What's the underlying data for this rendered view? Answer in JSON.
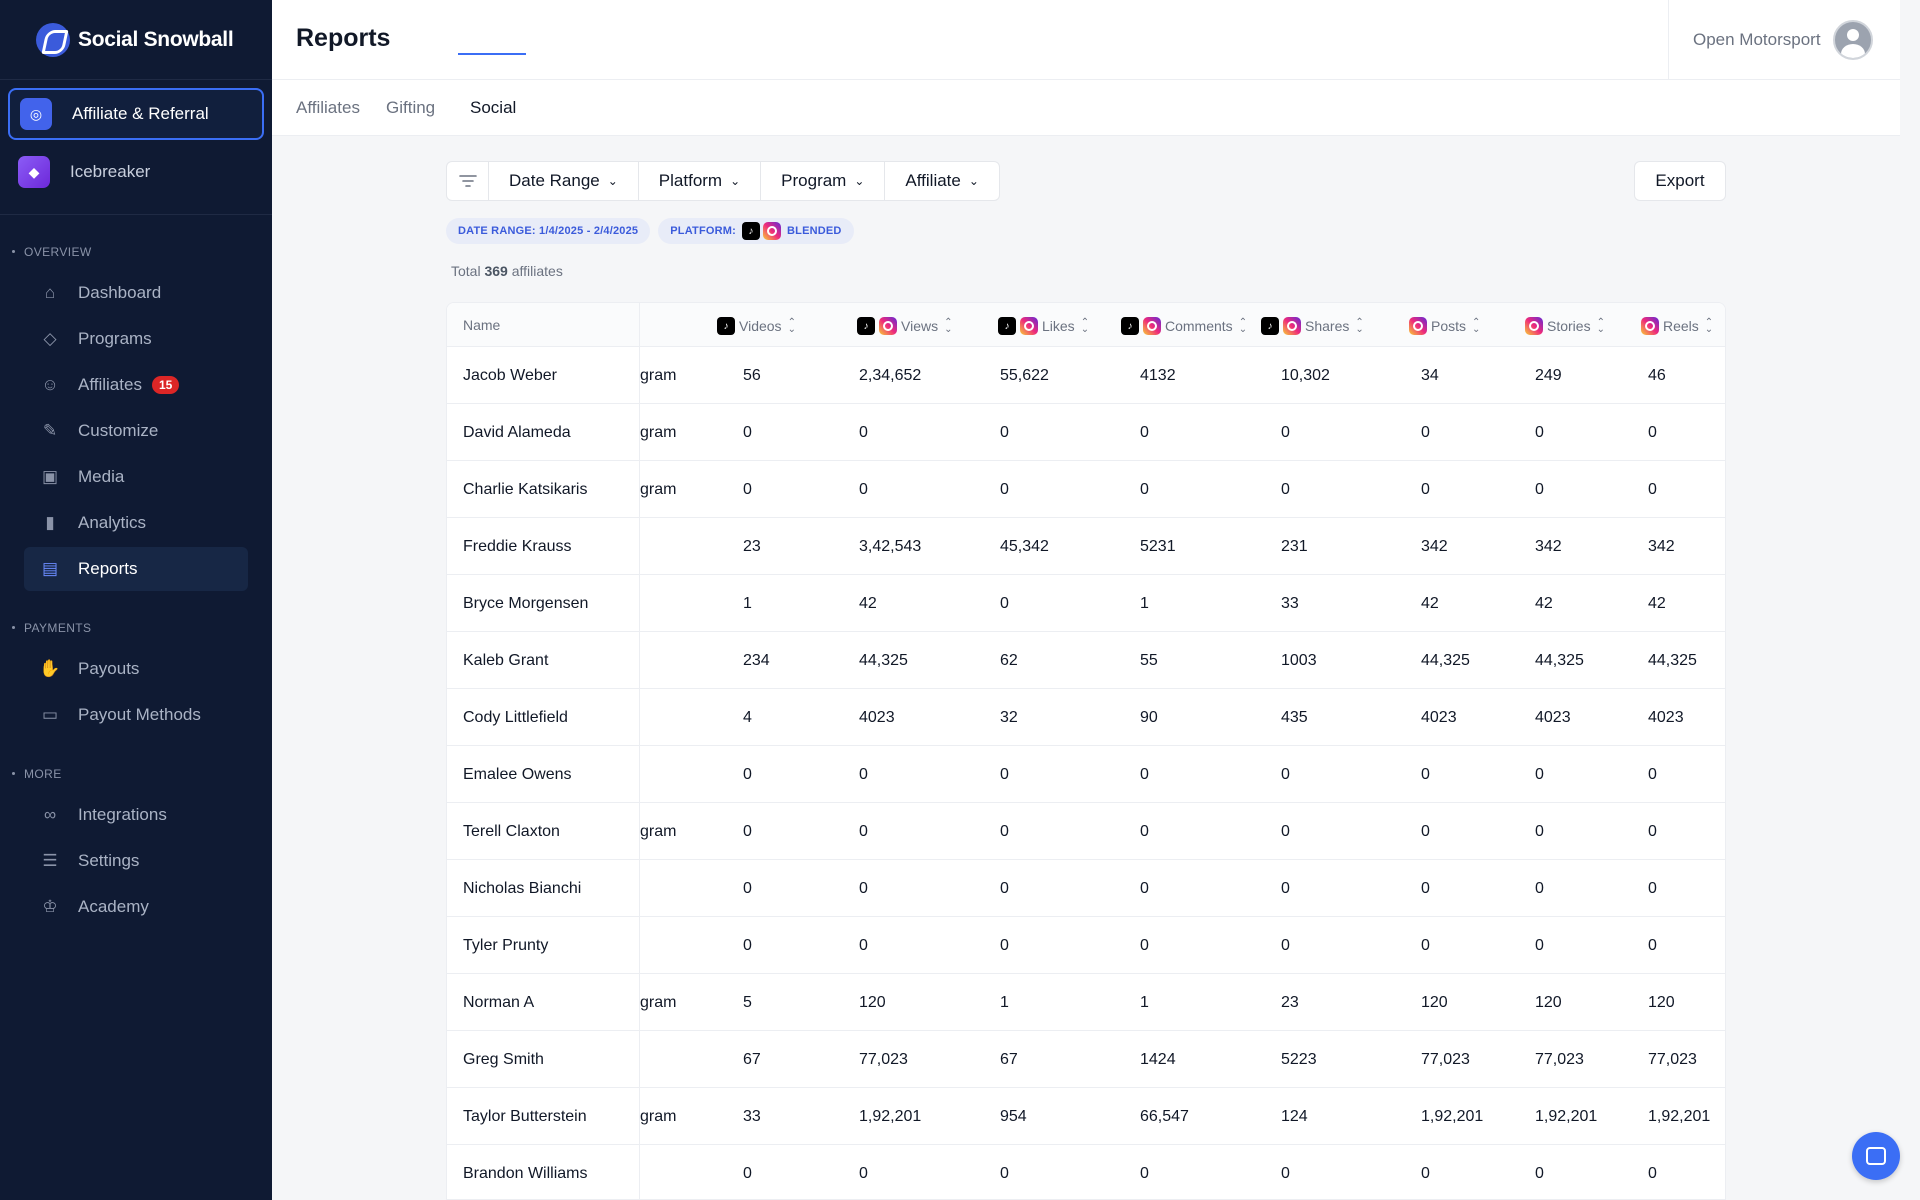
{
  "brand": {
    "name": "Social Snowball"
  },
  "apps": [
    {
      "label": "Affiliate & Referral",
      "active": true
    },
    {
      "label": "Icebreaker",
      "active": false
    }
  ],
  "nav": {
    "overview_heading": "OVERVIEW",
    "overview": [
      {
        "label": "Dashboard",
        "icon": "home-icon"
      },
      {
        "label": "Programs",
        "icon": "tag-icon"
      },
      {
        "label": "Affiliates",
        "icon": "smile-icon",
        "badge": "15"
      },
      {
        "label": "Customize",
        "icon": "pen-icon"
      },
      {
        "label": "Media",
        "icon": "image-icon"
      },
      {
        "label": "Analytics",
        "icon": "bar-chart-icon"
      },
      {
        "label": "Reports",
        "icon": "document-icon",
        "active": true
      }
    ],
    "payments_heading": "PAYMENTS",
    "payments": [
      {
        "label": "Payouts",
        "icon": "hand-coin-icon"
      },
      {
        "label": "Payout Methods",
        "icon": "card-icon"
      }
    ],
    "more_heading": "MORE",
    "more": [
      {
        "label": "Integrations",
        "icon": "link-icon"
      },
      {
        "label": "Settings",
        "icon": "settings-icon"
      },
      {
        "label": "Academy",
        "icon": "graduation-cap-icon"
      }
    ]
  },
  "header": {
    "title": "Reports",
    "account_name": "Open Motorsport"
  },
  "tabs": [
    "Affiliates",
    "Gifting",
    "Social"
  ],
  "filters": {
    "date_range": "Date Range",
    "platform": "Platform",
    "program": "Program",
    "affiliate": "Affiliate",
    "export": "Export"
  },
  "chips": {
    "date_range": "DATE RANGE: 1/4/2025 - 2/4/2025",
    "platform_label": "PLATFORM:",
    "platform_value": "BLENDED"
  },
  "total": {
    "prefix": "Total",
    "count": "369",
    "suffix": "affiliates"
  },
  "table": {
    "columns": [
      "Name",
      "Videos",
      "Views",
      "Likes",
      "Comments",
      "Shares",
      "Posts",
      "Stories",
      "Reels"
    ],
    "rows": [
      {
        "name": "Jacob Weber",
        "program": "gram",
        "values": [
          "56",
          "2,34,652",
          "55,622",
          "4132",
          "10,302",
          "34",
          "249",
          "46"
        ]
      },
      {
        "name": "David Alameda",
        "program": "gram",
        "values": [
          "0",
          "0",
          "0",
          "0",
          "0",
          "0",
          "0",
          "0"
        ]
      },
      {
        "name": "Charlie Katsikaris",
        "program": "gram",
        "values": [
          "0",
          "0",
          "0",
          "0",
          "0",
          "0",
          "0",
          "0"
        ]
      },
      {
        "name": "Freddie Krauss",
        "program": "",
        "values": [
          "23",
          "3,42,543",
          "45,342",
          "5231",
          "231",
          "342",
          "342",
          "342"
        ]
      },
      {
        "name": "Bryce Morgensen",
        "program": "",
        "values": [
          "1",
          "42",
          "0",
          "1",
          "33",
          "42",
          "42",
          "42"
        ]
      },
      {
        "name": "Kaleb Grant",
        "program": "",
        "values": [
          "234",
          "44,325",
          "62",
          "55",
          "1003",
          "44,325",
          "44,325",
          "44,325"
        ]
      },
      {
        "name": "Cody Littlefield",
        "program": "",
        "values": [
          "4",
          "4023",
          "32",
          "90",
          "435",
          "4023",
          "4023",
          "4023"
        ]
      },
      {
        "name": "Emalee Owens",
        "program": "",
        "values": [
          "0",
          "0",
          "0",
          "0",
          "0",
          "0",
          "0",
          "0"
        ]
      },
      {
        "name": "Terell Claxton",
        "program": "gram",
        "values": [
          "0",
          "0",
          "0",
          "0",
          "0",
          "0",
          "0",
          "0"
        ]
      },
      {
        "name": "Nicholas Bianchi",
        "program": "",
        "values": [
          "0",
          "0",
          "0",
          "0",
          "0",
          "0",
          "0",
          "0"
        ]
      },
      {
        "name": "Tyler Prunty",
        "program": "",
        "values": [
          "0",
          "0",
          "0",
          "0",
          "0",
          "0",
          "0",
          "0"
        ]
      },
      {
        "name": "Norman A",
        "program": "gram",
        "values": [
          "5",
          "120",
          "1",
          "1",
          "23",
          "120",
          "120",
          "120"
        ]
      },
      {
        "name": "Greg Smith",
        "program": "",
        "values": [
          "67",
          "77,023",
          "67",
          "1424",
          "5223",
          "77,023",
          "77,023",
          "77,023"
        ]
      },
      {
        "name": "Taylor Butterstein",
        "program": "gram",
        "values": [
          "33",
          "1,92,201",
          "954",
          "66,547",
          "124",
          "1,92,201",
          "1,92,201",
          "1,92,201"
        ]
      },
      {
        "name": "Brandon Williams",
        "program": "",
        "values": [
          "0",
          "0",
          "0",
          "0",
          "0",
          "0",
          "0",
          "0"
        ]
      }
    ]
  },
  "colors": {
    "sidebar_bg": "#0f1a33",
    "accent": "#3b6ef5",
    "badge": "#dc2626"
  }
}
